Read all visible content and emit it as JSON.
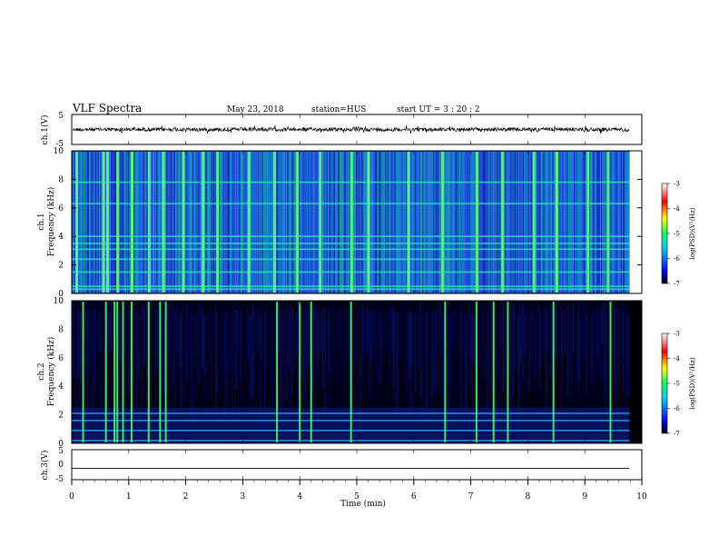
{
  "header": {
    "title": "VLF Spectra",
    "date": "May 23, 2018",
    "station": "station=HUS",
    "start": "start  UT =   3  : 20 : 2"
  },
  "chart_data": [
    {
      "type": "line",
      "name": "ch1-waveform",
      "ylabel": "ch.1(V)",
      "ylim": [
        -5,
        5
      ],
      "yticks": [
        "5",
        "-5"
      ],
      "description_level": 0
    },
    {
      "type": "heatmap",
      "name": "ch1-spectrogram",
      "ylabel": "ch.1\nFrequency (kHz)",
      "ylabel_line1": "ch.1",
      "ylabel_line2": "Frequency  (kHz)",
      "ylim": [
        0,
        10
      ],
      "yticks": [
        "0",
        "2",
        "4",
        "6",
        "8",
        "10"
      ],
      "xlim": [
        0,
        10
      ],
      "colorbar": {
        "label": "log(PSD)(V²/Hz)",
        "range": [
          -7,
          -3
        ],
        "ticks": [
          "-3",
          "-4",
          "-5",
          "-6",
          "-7"
        ],
        "colors": [
          "#000000",
          "#0000ff",
          "#00c8ff",
          "#00ff64",
          "#ffff00",
          "#ff0000",
          "#ffffff"
        ]
      },
      "vertical_bursts_min": [
        0.08,
        0.55,
        0.62,
        0.8,
        1.05,
        1.35,
        1.6,
        1.95,
        2.3,
        2.55,
        3.1,
        3.55,
        3.95,
        4.35,
        4.9,
        5.2,
        5.9,
        6.5,
        7.1,
        7.55,
        8.1,
        8.5,
        9.05,
        9.4
      ],
      "horizontal_lines_khz": [
        0.3,
        0.5,
        1.5,
        2.4,
        3.1,
        3.5,
        4.0,
        6.3,
        7.8
      ]
    },
    {
      "type": "heatmap",
      "name": "ch2-spectrogram",
      "ylabel_line1": "ch.2",
      "ylabel_line2": "Frequency  (kHz)",
      "ylim": [
        0,
        10
      ],
      "yticks": [
        "0",
        "2",
        "4",
        "6",
        "8",
        "10"
      ],
      "xlim": [
        0,
        10
      ],
      "colorbar": {
        "label": "log(PSD)(V²/Hz)",
        "range": [
          -7,
          -3
        ],
        "ticks": [
          "-3",
          "-4",
          "-5",
          "-6",
          "-7"
        ]
      },
      "vertical_bursts_min": [
        0.2,
        0.6,
        0.75,
        0.8,
        0.9,
        1.05,
        1.35,
        1.55,
        1.65,
        3.6,
        4.0,
        4.2,
        4.9,
        6.55,
        7.1,
        7.4,
        7.65,
        8.45,
        9.45
      ],
      "horizontal_lines_khz": [
        0.2,
        0.9,
        1.6,
        2.1
      ]
    },
    {
      "type": "line",
      "name": "ch3-waveform",
      "ylabel": "ch.3(V)",
      "ylim": [
        -5,
        5
      ],
      "yticks": [
        "5",
        "0",
        "-5"
      ],
      "level": -1.2
    }
  ],
  "xaxis": {
    "label": "Time  (min)",
    "range": [
      0,
      10
    ],
    "ticks": [
      "0",
      "1",
      "2",
      "3",
      "4",
      "5",
      "6",
      "7",
      "8",
      "9",
      "10"
    ]
  }
}
